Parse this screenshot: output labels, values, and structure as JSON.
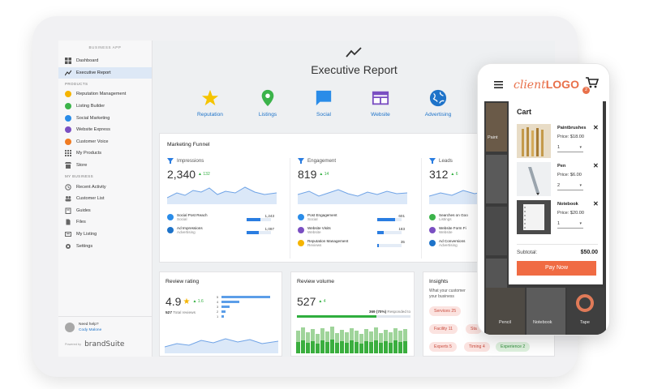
{
  "sidebar": {
    "app_label": "BUSINESS APP",
    "top_items": [
      {
        "label": "Dashboard",
        "icon": "grid-icon"
      },
      {
        "label": "Executive Report",
        "icon": "trend-icon"
      }
    ],
    "products_title": "PRODUCTS",
    "products": [
      {
        "label": "Reputation Management",
        "color": "#f5b400"
      },
      {
        "label": "Listing Builder",
        "color": "#3bb34a"
      },
      {
        "label": "Social Marketing",
        "color": "#2a8ce8"
      },
      {
        "label": "Website Express",
        "color": "#7a4fc2"
      },
      {
        "label": "Customer Voice",
        "color": "#f07b22"
      },
      {
        "label": "My Products",
        "color": "#666666"
      },
      {
        "label": "Store",
        "color": "#666666"
      }
    ],
    "business_title": "MY BUSINESS",
    "business": [
      {
        "label": "Recent Activity"
      },
      {
        "label": "Customer List"
      },
      {
        "label": "Guides"
      },
      {
        "label": "Files"
      },
      {
        "label": "My Listing"
      },
      {
        "label": "Settings"
      }
    ],
    "help_label": "Need help?",
    "help_name": "Cody Malone",
    "powered_by": "Powered by",
    "brand": "brandSuite"
  },
  "header": {
    "title": "Executive Report",
    "products": [
      "Reputation",
      "Listings",
      "Social",
      "Website",
      "Advertising"
    ]
  },
  "funnel": {
    "title": "Marketing Funnel",
    "columns": [
      {
        "name": "Impressions",
        "value": "2,340",
        "delta": "132",
        "rows": [
          {
            "title": "Social Post Reach",
            "sub": "Social",
            "value": "1,243",
            "pct": 0.55,
            "color": "#2a8ce8"
          },
          {
            "title": "Ad Impressions",
            "sub": "Advertising",
            "value": "1,097",
            "pct": 0.5,
            "color": "#1e73c9"
          }
        ]
      },
      {
        "name": "Engagement",
        "value": "819",
        "delta": "14",
        "rows": [
          {
            "title": "Post Engagement",
            "sub": "Social",
            "value": "601",
            "pct": 0.72,
            "color": "#2a8ce8"
          },
          {
            "title": "Website Visits",
            "sub": "Website",
            "value": "183",
            "pct": 0.25,
            "color": "#7a4fc2"
          },
          {
            "title": "Reputation Management",
            "sub": "Reviews",
            "value": "35",
            "pct": 0.06,
            "color": "#f5b400"
          }
        ]
      },
      {
        "name": "Leads",
        "value": "312",
        "delta": "6",
        "rows": [
          {
            "title": "Searches on Goo",
            "sub": "Listings",
            "color": "#3bb34a"
          },
          {
            "title": "Website Form Fi",
            "sub": "Website",
            "color": "#7a4fc2"
          },
          {
            "title": "Ad Conversions",
            "sub": "Advertising",
            "color": "#1e73c9"
          }
        ]
      }
    ]
  },
  "rating": {
    "title": "Review rating",
    "value": "4.9",
    "delta": "1.6",
    "total": "527",
    "total_label": "Total reviews",
    "stars": [
      {
        "label": "5",
        "pct": 0.95
      },
      {
        "label": "4",
        "pct": 0.35
      },
      {
        "label": "3",
        "pct": 0.15
      },
      {
        "label": "2",
        "pct": 0.08
      },
      {
        "label": "1",
        "pct": 0.05
      }
    ]
  },
  "volume": {
    "title": "Review volume",
    "value": "527",
    "delta": "4",
    "responded": "369",
    "responded_pct": "(70%)",
    "responded_label": "Responded to",
    "responded_fill": 0.7
  },
  "insights": {
    "title": "Insights",
    "subtitle_1": "What your customer",
    "subtitle_2": "your business",
    "chips": [
      {
        "label": "Services 25",
        "kind": "neg"
      },
      {
        "label": "Facility 11",
        "kind": "neg"
      },
      {
        "label": "Sta",
        "kind": "neg"
      },
      {
        "label": "Experts 5",
        "kind": "neg"
      },
      {
        "label": "Timing 4",
        "kind": "neg"
      },
      {
        "label": "Experience 2",
        "kind": "pos"
      }
    ]
  },
  "phone": {
    "logo_a": "client",
    "logo_b": "LOGO",
    "cart_count": "2",
    "cart_title": "Cart",
    "items": [
      {
        "name": "Paintbrushes",
        "price": "Price: $18.00",
        "qty": "1"
      },
      {
        "name": "Pen",
        "price": "Price: $6.00",
        "qty": "2"
      },
      {
        "name": "Notebook",
        "price": "Price: $20.00",
        "qty": "1"
      }
    ],
    "subtotal_label": "Subtotal:",
    "subtotal_value": "$50.00",
    "pay_label": "Pay Now",
    "bg_labels": [
      "Paint",
      "Pencil",
      "Notebook",
      "Tape"
    ]
  }
}
